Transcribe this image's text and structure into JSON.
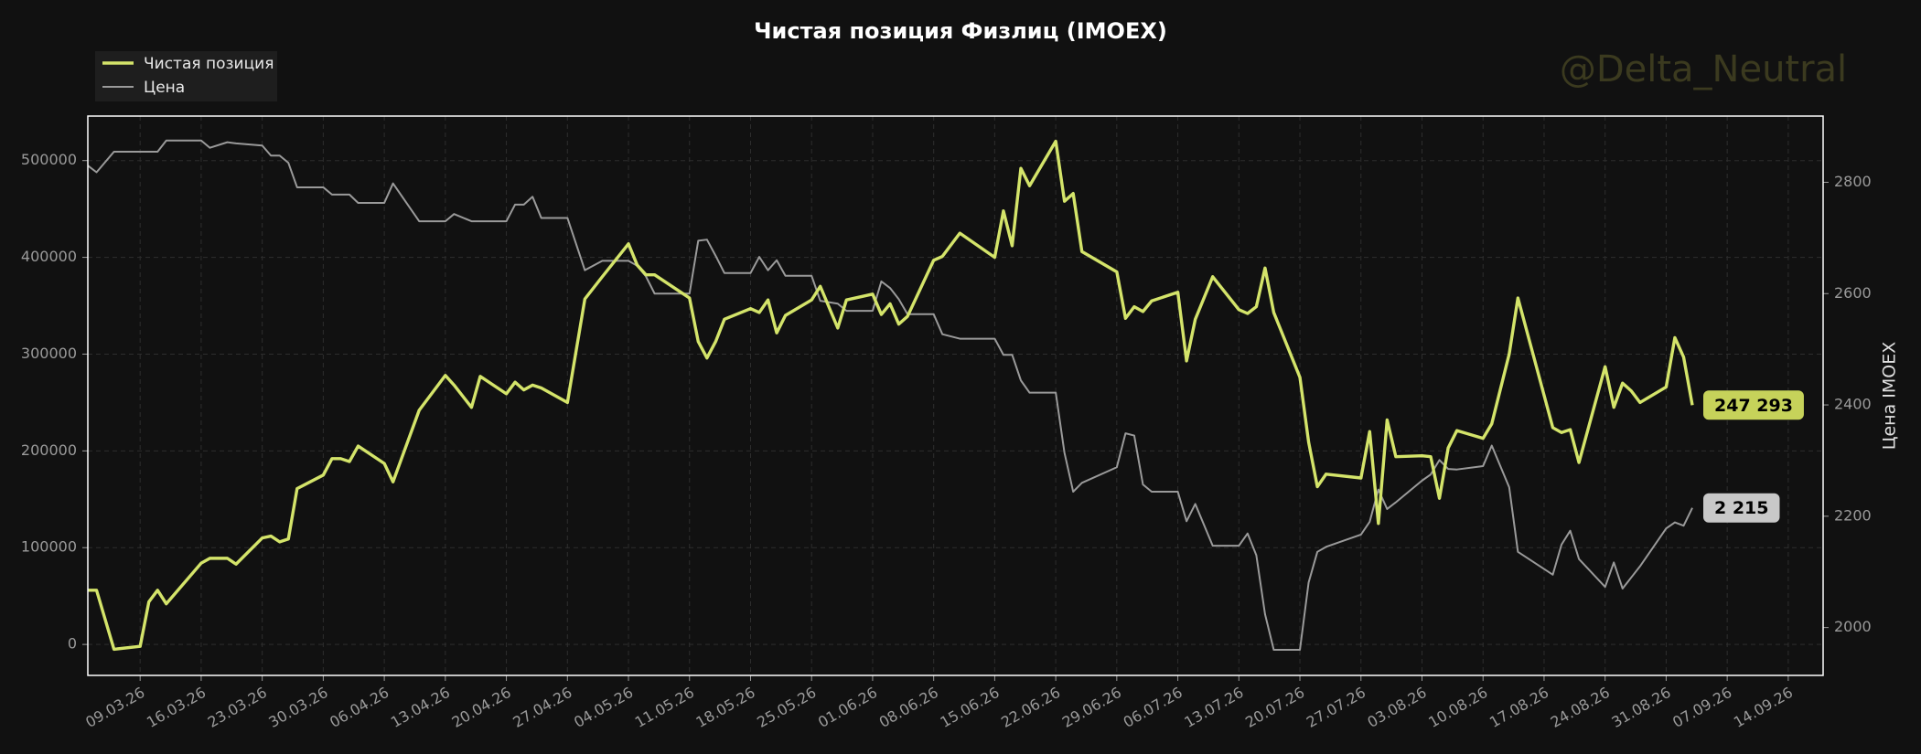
{
  "chart_data": {
    "type": "line",
    "title": "Чистая позиция Физлиц (IMOEX)",
    "watermark": "@Delta_Neutral",
    "y2label": "Цена IMOEX",
    "grid": true,
    "legend": "upper left",
    "x": [
      "2026-03-03",
      "2026-03-04",
      "2026-03-06",
      "2026-03-09",
      "2026-03-10",
      "2026-03-11",
      "2026-03-12",
      "2026-03-16",
      "2026-03-17",
      "2026-03-19",
      "2026-03-20",
      "2026-03-23",
      "2026-03-24",
      "2026-03-25",
      "2026-03-26",
      "2026-03-27",
      "2026-03-30",
      "2026-03-31",
      "2026-04-01",
      "2026-04-02",
      "2026-04-03",
      "2026-04-06",
      "2026-04-07",
      "2026-04-10",
      "2026-04-13",
      "2026-04-14",
      "2026-04-16",
      "2026-04-17",
      "2026-04-20",
      "2026-04-21",
      "2026-04-22",
      "2026-04-23",
      "2026-04-24",
      "2026-04-27",
      "2026-04-29",
      "2026-05-01",
      "2026-05-04",
      "2026-05-05",
      "2026-05-06",
      "2026-05-07",
      "2026-05-11",
      "2026-05-12",
      "2026-05-13",
      "2026-05-14",
      "2026-05-15",
      "2026-05-18",
      "2026-05-19",
      "2026-05-20",
      "2026-05-21",
      "2026-05-22",
      "2026-05-25",
      "2026-05-26",
      "2026-05-28",
      "2026-05-29",
      "2026-06-01",
      "2026-06-02",
      "2026-06-03",
      "2026-06-04",
      "2026-06-05",
      "2026-06-08",
      "2026-06-09",
      "2026-06-11",
      "2026-06-15",
      "2026-06-16",
      "2026-06-17",
      "2026-06-18",
      "2026-06-19",
      "2026-06-22",
      "2026-06-23",
      "2026-06-24",
      "2026-06-25",
      "2026-06-29",
      "2026-06-30",
      "2026-07-01",
      "2026-07-02",
      "2026-07-03",
      "2026-07-06",
      "2026-07-07",
      "2026-07-08",
      "2026-07-10",
      "2026-07-13",
      "2026-07-14",
      "2026-07-15",
      "2026-07-16",
      "2026-07-17",
      "2026-07-20",
      "2026-07-21",
      "2026-07-22",
      "2026-07-23",
      "2026-07-27",
      "2026-07-28",
      "2026-07-29",
      "2026-07-30",
      "2026-07-31",
      "2026-08-03",
      "2026-08-04",
      "2026-08-05",
      "2026-08-06",
      "2026-08-07",
      "2026-08-10",
      "2026-08-11",
      "2026-08-13",
      "2026-08-14",
      "2026-08-18",
      "2026-08-19",
      "2026-08-20",
      "2026-08-21",
      "2026-08-24",
      "2026-08-25",
      "2026-08-26",
      "2026-08-27",
      "2026-08-28",
      "2026-08-31",
      "2026-09-01",
      "2026-09-02",
      "2026-09-03"
    ],
    "xlim": [
      "2026-03-03",
      "2026-09-18"
    ],
    "xticks": [
      {
        "value": "2026-03-09",
        "label": "09.03.26"
      },
      {
        "value": "2026-03-16",
        "label": "16.03.26"
      },
      {
        "value": "2026-03-23",
        "label": "23.03.26"
      },
      {
        "value": "2026-03-30",
        "label": "30.03.26"
      },
      {
        "value": "2026-04-06",
        "label": "06.04.26"
      },
      {
        "value": "2026-04-13",
        "label": "13.04.26"
      },
      {
        "value": "2026-04-20",
        "label": "20.04.26"
      },
      {
        "value": "2026-04-27",
        "label": "27.04.26"
      },
      {
        "value": "2026-05-04",
        "label": "04.05.26"
      },
      {
        "value": "2026-05-11",
        "label": "11.05.26"
      },
      {
        "value": "2026-05-18",
        "label": "18.05.26"
      },
      {
        "value": "2026-05-25",
        "label": "25.05.26"
      },
      {
        "value": "2026-06-01",
        "label": "01.06.26"
      },
      {
        "value": "2026-06-08",
        "label": "08.06.26"
      },
      {
        "value": "2026-06-15",
        "label": "15.06.26"
      },
      {
        "value": "2026-06-22",
        "label": "22.06.26"
      },
      {
        "value": "2026-06-29",
        "label": "29.06.26"
      },
      {
        "value": "2026-07-06",
        "label": "06.07.26"
      },
      {
        "value": "2026-07-13",
        "label": "13.07.26"
      },
      {
        "value": "2026-07-20",
        "label": "20.07.26"
      },
      {
        "value": "2026-07-27",
        "label": "27.07.26"
      },
      {
        "value": "2026-08-03",
        "label": "03.08.26"
      },
      {
        "value": "2026-08-10",
        "label": "10.08.26"
      },
      {
        "value": "2026-08-17",
        "label": "17.08.26"
      },
      {
        "value": "2026-08-24",
        "label": "24.08.26"
      },
      {
        "value": "2026-08-31",
        "label": "31.08.26"
      },
      {
        "value": "2026-09-07",
        "label": "07.09.26"
      },
      {
        "value": "2026-09-14",
        "label": "14.09.26"
      }
    ],
    "ylim": [
      -32000,
      546000
    ],
    "yticks": [
      0,
      100000,
      200000,
      300000,
      400000,
      500000
    ],
    "y2lim": [
      1914,
      2919
    ],
    "y2ticks": [
      2000,
      2200,
      2400,
      2600,
      2800
    ],
    "series": [
      {
        "name": "Чистая позиция",
        "color": "#d4e46a",
        "axis": "y",
        "values": [
          56000,
          56000,
          -5000,
          -2000,
          44000,
          56000,
          42000,
          84000,
          89000,
          89000,
          83000,
          110000,
          112000,
          106000,
          109000,
          161000,
          175000,
          192000,
          192000,
          189000,
          205000,
          187000,
          168000,
          242000,
          278000,
          268000,
          245000,
          277000,
          259000,
          271000,
          263000,
          268000,
          265000,
          250000,
          357000,
          380000,
          414000,
          392000,
          382000,
          382000,
          358000,
          313000,
          296000,
          313000,
          336000,
          347000,
          343000,
          356000,
          322000,
          340000,
          356000,
          370000,
          327000,
          356000,
          362000,
          341000,
          352000,
          331000,
          339000,
          397000,
          401000,
          425000,
          400000,
          448000,
          412000,
          492000,
          474000,
          520000,
          458000,
          466000,
          406000,
          385000,
          337000,
          349000,
          344000,
          355000,
          364000,
          293000,
          336000,
          380000,
          346000,
          342000,
          349000,
          389000,
          343000,
          276000,
          209000,
          163000,
          176000,
          172000,
          220000,
          125000,
          232000,
          194000,
          195000,
          194000,
          151000,
          203000,
          221000,
          213000,
          228000,
          300000,
          358000,
          224000,
          219000,
          222000,
          188000,
          287000,
          245000,
          270000,
          262000,
          250000,
          266000,
          317000,
          297000,
          247293
        ],
        "value_labels": [
          null,
          null,
          null,
          null,
          null,
          null,
          null,
          null,
          null,
          null,
          null,
          null,
          null,
          null,
          null,
          null,
          null,
          null,
          null,
          null,
          null,
          null,
          null,
          null,
          null,
          null,
          null,
          null,
          null,
          null,
          null,
          null,
          null,
          null,
          null,
          null,
          null,
          null,
          null,
          null,
          null,
          null,
          null,
          null,
          null,
          null,
          null,
          null,
          null,
          null,
          null,
          null,
          null,
          null,
          null,
          null,
          null,
          null,
          null,
          null,
          null,
          null,
          null,
          null,
          null,
          null,
          null,
          null,
          null,
          null,
          null,
          null,
          null,
          null,
          null,
          null,
          null,
          null,
          null,
          null,
          null,
          null,
          null,
          null,
          null,
          null,
          null,
          null,
          null,
          null,
          null,
          null,
          null,
          null,
          null,
          null,
          null,
          null,
          null,
          null,
          null,
          null,
          null,
          null,
          null,
          null,
          null,
          null,
          null,
          null,
          null,
          null,
          null,
          null,
          null,
          "247 293"
        ]
      },
      {
        "name": "Цена",
        "color": "#9a9a9a",
        "axis": "y2",
        "values": [
          2830,
          2818,
          2855,
          2855,
          2855,
          2855,
          2875,
          2875,
          2862,
          2872,
          2870,
          2866,
          2848,
          2848,
          2835,
          2791,
          2791,
          2778,
          2778,
          2778,
          2763,
          2763,
          2798,
          2730,
          2730,
          2743,
          2730,
          2730,
          2730,
          2760,
          2760,
          2774,
          2736,
          2736,
          2642,
          2659,
          2659,
          2650,
          2631,
          2600,
          2600,
          2695,
          2697,
          2668,
          2637,
          2637,
          2666,
          2642,
          2660,
          2632,
          2632,
          2587,
          2582,
          2569,
          2569,
          2622,
          2610,
          2590,
          2563,
          2563,
          2527,
          2519,
          2519,
          2490,
          2490,
          2444,
          2422,
          2422,
          2314,
          2244,
          2260,
          2288,
          2349,
          2345,
          2257,
          2244,
          2244,
          2191,
          2222,
          2147,
          2147,
          2169,
          2130,
          2024,
          1960,
          1960,
          2081,
          2136,
          2145,
          2167,
          2190,
          2248,
          2213,
          2225,
          2264,
          2275,
          2301,
          2285,
          2284,
          2290,
          2327,
          2252,
          2136,
          2095,
          2149,
          2174,
          2123,
          2073,
          2117,
          2070,
          2090,
          2110,
          2178,
          2189,
          2183,
          2215
        ],
        "value_labels": [
          null,
          null,
          null,
          null,
          null,
          null,
          null,
          null,
          null,
          null,
          null,
          null,
          null,
          null,
          null,
          null,
          null,
          null,
          null,
          null,
          null,
          null,
          null,
          null,
          null,
          null,
          null,
          null,
          null,
          null,
          null,
          null,
          null,
          null,
          null,
          null,
          null,
          null,
          null,
          null,
          null,
          null,
          null,
          null,
          null,
          null,
          null,
          null,
          null,
          null,
          null,
          null,
          null,
          null,
          null,
          null,
          null,
          null,
          null,
          null,
          null,
          null,
          null,
          null,
          null,
          null,
          null,
          null,
          null,
          null,
          null,
          null,
          null,
          null,
          null,
          null,
          null,
          null,
          null,
          null,
          null,
          null,
          null,
          null,
          null,
          null,
          null,
          null,
          null,
          null,
          null,
          null,
          null,
          null,
          null,
          null,
          null,
          null,
          null,
          null,
          null,
          null,
          null,
          null,
          null,
          null,
          null,
          null,
          null,
          null,
          null,
          null,
          null,
          null,
          null,
          "2 215"
        ]
      }
    ]
  }
}
